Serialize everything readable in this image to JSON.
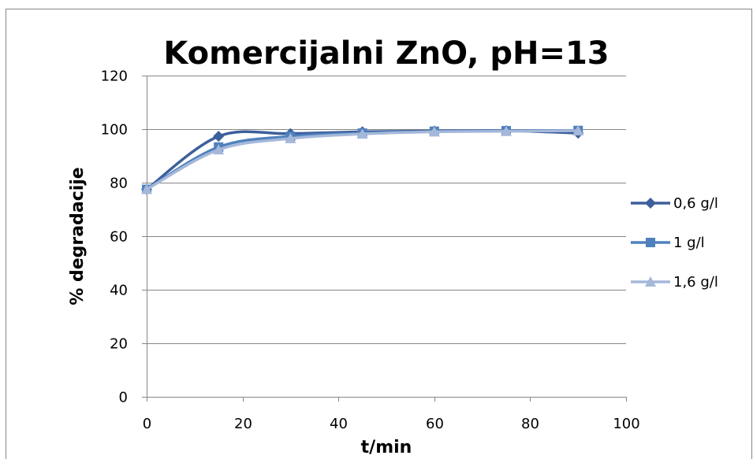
{
  "chart_data": {
    "type": "line",
    "title": "Komercijalni ZnO, pH=13",
    "xlabel": "t/min",
    "ylabel": "% degradacije",
    "xlim": [
      0,
      100
    ],
    "ylim": [
      0,
      120
    ],
    "xticks": [
      0,
      20,
      40,
      60,
      80,
      100
    ],
    "yticks": [
      0,
      20,
      40,
      60,
      80,
      100,
      120
    ],
    "grid": "horizontal",
    "legend_position": "right",
    "x": [
      0,
      15,
      30,
      45,
      60,
      75,
      90
    ],
    "series": [
      {
        "name": "0,6 g/l",
        "values": [
          77.5,
          97.3,
          98.3,
          99,
          99.3,
          99.4,
          98.5
        ],
        "color": "#3D5F9B",
        "marker": "diamond"
      },
      {
        "name": "1 g/l",
        "values": [
          77.5,
          93.3,
          97.3,
          98.5,
          99.2,
          99.4,
          99.5
        ],
        "color": "#4F81BD",
        "marker": "square"
      },
      {
        "name": "1,6 g/l",
        "values": [
          77.5,
          92.3,
          96.5,
          98.2,
          99,
          99.2,
          99.4
        ],
        "color": "#A5B8DA",
        "marker": "triangle"
      }
    ]
  }
}
